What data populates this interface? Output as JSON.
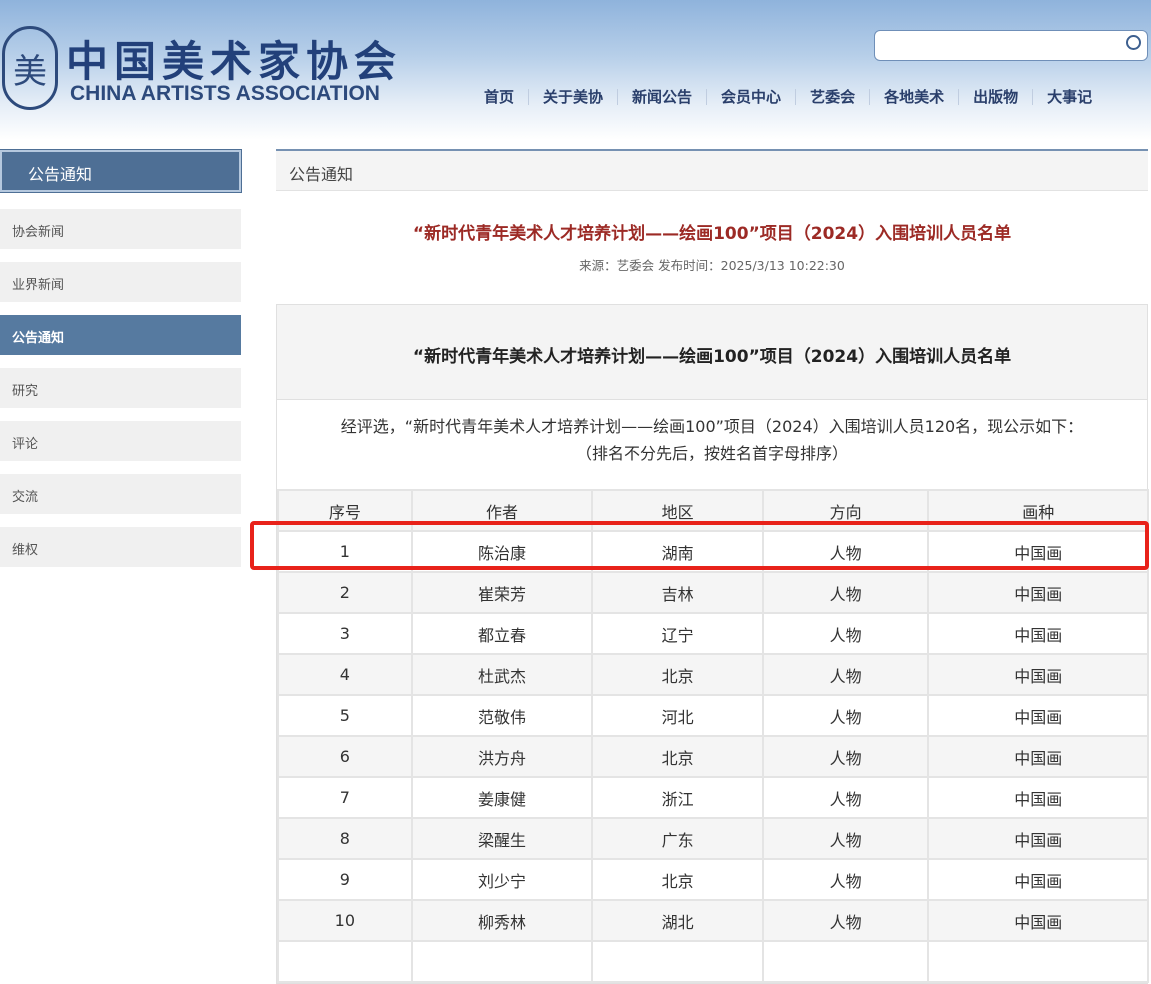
{
  "header": {
    "logo_cn": "中国美术家协会",
    "logo_en": "CHINA ARTISTS ASSOCIATION",
    "logo_mark": "美",
    "search_placeholder": "",
    "nav": [
      "首页",
      "关于美协",
      "新闻公告",
      "会员中心",
      "艺委会",
      "各地美术",
      "出版物",
      "大事记"
    ]
  },
  "sidebar": {
    "title": "公告通知",
    "items": [
      "协会新闻",
      "业界新闻",
      "公告通知",
      "研究",
      "评论",
      "交流",
      "维权"
    ],
    "active": 2
  },
  "main": {
    "section": "公告通知",
    "title": "“新时代青年美术人才培养计划——绘画100”项目（2024）入围培训人员名单",
    "meta": "来源：艺委会 发布时间：2025/3/13 10:22:30",
    "box_title": "“新时代青年美术人才培养计划——绘画100”项目（2024）入围培训人员名单",
    "intro1": "经评选，“新时代青年美术人才培养计划——绘画100”项目（2024）入围培训人员120名，现公示如下：",
    "intro2": "（排名不分先后，按姓名首字母排序）",
    "columns": [
      "序号",
      "作者",
      "地区",
      "方向",
      "画种"
    ],
    "rows": [
      [
        "1",
        "陈治康",
        "湖南",
        "人物",
        "中国画"
      ],
      [
        "2",
        "崔荣芳",
        "吉林",
        "人物",
        "中国画"
      ],
      [
        "3",
        "都立春",
        "辽宁",
        "人物",
        "中国画"
      ],
      [
        "4",
        "杜武杰",
        "北京",
        "人物",
        "中国画"
      ],
      [
        "5",
        "范敬伟",
        "河北",
        "人物",
        "中国画"
      ],
      [
        "6",
        "洪方舟",
        "北京",
        "人物",
        "中国画"
      ],
      [
        "7",
        "姜康健",
        "浙江",
        "人物",
        "中国画"
      ],
      [
        "8",
        "梁醒生",
        "广东",
        "人物",
        "中国画"
      ],
      [
        "9",
        "刘少宁",
        "北京",
        "人物",
        "中国画"
      ],
      [
        "10",
        "柳秀林",
        "湖北",
        "人物",
        "中国画"
      ],
      [
        "",
        "",
        "",
        "",
        ""
      ]
    ]
  },
  "colors": {
    "highlight": "#e8221a",
    "title_red": "#9c2a25",
    "sidebar_active": "#567aa0"
  }
}
